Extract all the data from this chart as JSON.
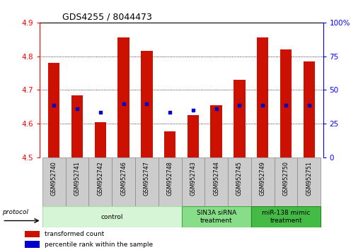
{
  "title": "GDS4255 / 8044473",
  "samples": [
    "GSM952740",
    "GSM952741",
    "GSM952742",
    "GSM952746",
    "GSM952747",
    "GSM952748",
    "GSM952743",
    "GSM952744",
    "GSM952745",
    "GSM952749",
    "GSM952750",
    "GSM952751"
  ],
  "transformed_count": [
    4.78,
    4.685,
    4.605,
    4.855,
    4.815,
    4.578,
    4.625,
    4.655,
    4.73,
    4.855,
    4.82,
    4.785
  ],
  "percentile_rank": [
    4.655,
    4.645,
    4.635,
    4.66,
    4.66,
    4.635,
    4.64,
    4.645,
    4.655,
    4.655,
    4.655,
    4.655
  ],
  "ylim_left": [
    4.5,
    4.9
  ],
  "ylim_right": [
    0,
    100
  ],
  "bar_color": "#cc1100",
  "dot_color": "#0000cc",
  "left_tick_labels": [
    "4.5",
    "4.6",
    "4.7",
    "4.8",
    "4.9"
  ],
  "left_tick_vals": [
    4.5,
    4.6,
    4.7,
    4.8,
    4.9
  ],
  "right_tick_labels": [
    "0",
    "25",
    "50",
    "75",
    "100%"
  ],
  "right_tick_vals": [
    0,
    25,
    50,
    75,
    100
  ],
  "groups": [
    {
      "label": "control",
      "start": 0,
      "end": 6,
      "color": "#d6f5d6",
      "edge_color": "#aaddaa"
    },
    {
      "label": "SIN3A siRNA\ntreatment",
      "start": 6,
      "end": 9,
      "color": "#88dd88",
      "edge_color": "#44aa44"
    },
    {
      "label": "miR-138 mimic\ntreatment",
      "start": 9,
      "end": 12,
      "color": "#44bb44",
      "edge_color": "#228822"
    }
  ],
  "legend_items": [
    {
      "label": "transformed count",
      "color": "#cc1100"
    },
    {
      "label": "percentile rank within the sample",
      "color": "#0000cc"
    }
  ],
  "protocol_label": "protocol",
  "bar_width": 0.5
}
